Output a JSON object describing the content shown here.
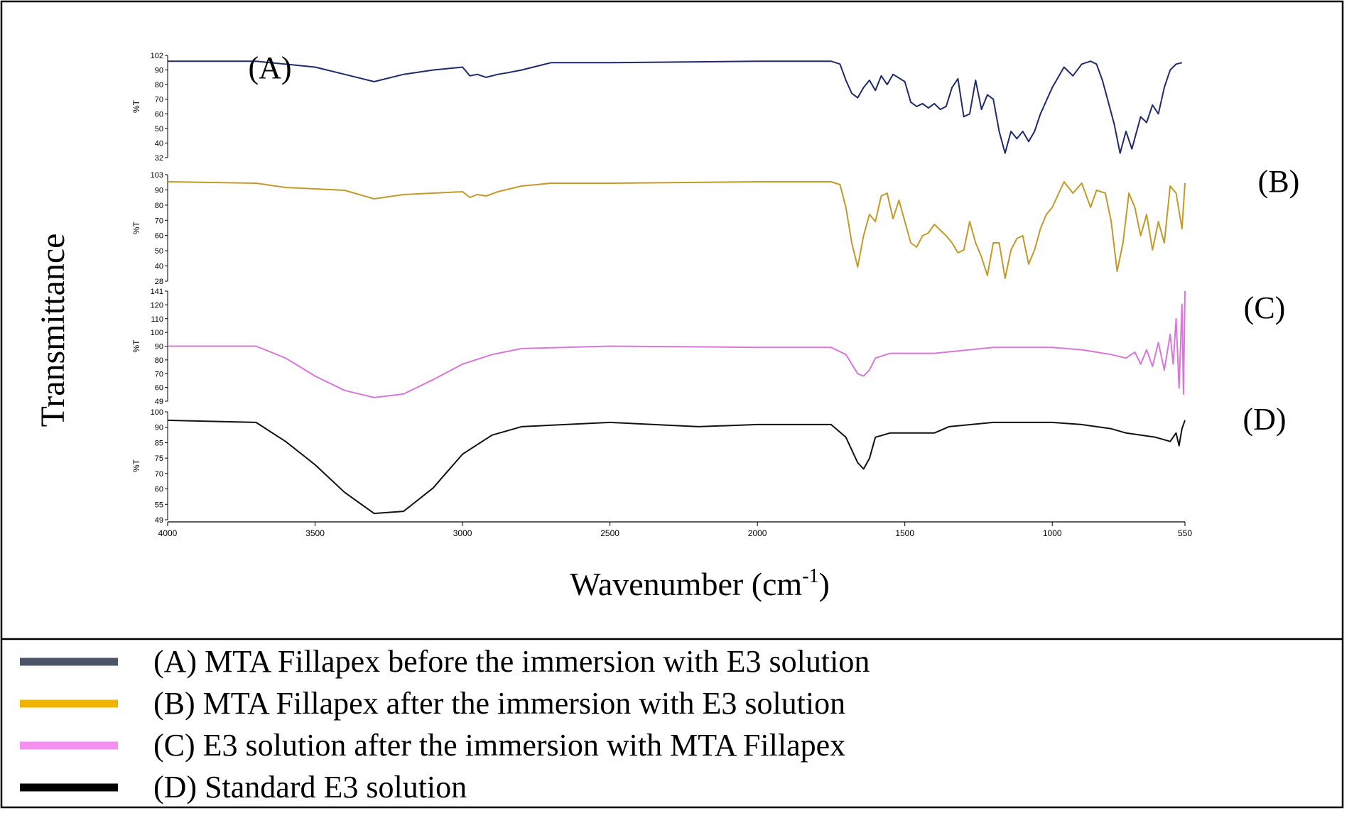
{
  "chart_data": {
    "type": "line",
    "xlabel_main": "Wavenumber (cm",
    "xlabel_sup": "-1",
    "xlabel_close": ")",
    "ylabel": "Transmittance",
    "xlim": [
      4000,
      550
    ],
    "x_axis_reversed": true,
    "x_ticks": [
      4000,
      3500,
      3000,
      2500,
      2000,
      1500,
      1000,
      550
    ],
    "x_tick_labels": [
      "4000",
      "3500",
      "3000",
      "2500",
      "2000",
      "1500",
      "1000",
      "550"
    ],
    "panel_ylabel": "%T",
    "colors": {
      "A": "#1f2a6b",
      "B": "#c29a28",
      "C": "#d877d8",
      "D": "#111111",
      "legend_A": "#4a5568",
      "legend_B": "#f0b400",
      "legend_C": "#f58ff0",
      "legend_D": "#000000"
    },
    "series": [
      {
        "id": "A",
        "name": "(A)",
        "ylim": [
          32,
          102
        ],
        "ticks": [
          "102",
          "90",
          "80",
          "70",
          "60",
          "50",
          "40",
          "32"
        ],
        "points": [
          [
            4000,
            98
          ],
          [
            3700,
            98
          ],
          [
            3500,
            94
          ],
          [
            3400,
            89
          ],
          [
            3300,
            84
          ],
          [
            3200,
            89
          ],
          [
            3100,
            92
          ],
          [
            3000,
            94
          ],
          [
            2975,
            88
          ],
          [
            2950,
            89
          ],
          [
            2920,
            87
          ],
          [
            2880,
            89
          ],
          [
            2850,
            90
          ],
          [
            2800,
            92
          ],
          [
            2700,
            97
          ],
          [
            2500,
            97
          ],
          [
            2000,
            98
          ],
          [
            1750,
            98
          ],
          [
            1720,
            96
          ],
          [
            1700,
            85
          ],
          [
            1680,
            76
          ],
          [
            1660,
            73
          ],
          [
            1640,
            80
          ],
          [
            1620,
            85
          ],
          [
            1600,
            78
          ],
          [
            1580,
            88
          ],
          [
            1560,
            82
          ],
          [
            1540,
            89
          ],
          [
            1500,
            84
          ],
          [
            1480,
            70
          ],
          [
            1460,
            67
          ],
          [
            1440,
            69
          ],
          [
            1420,
            66
          ],
          [
            1400,
            69
          ],
          [
            1380,
            65
          ],
          [
            1360,
            67
          ],
          [
            1340,
            80
          ],
          [
            1320,
            86
          ],
          [
            1300,
            60
          ],
          [
            1280,
            62
          ],
          [
            1260,
            85
          ],
          [
            1240,
            65
          ],
          [
            1220,
            75
          ],
          [
            1200,
            72
          ],
          [
            1180,
            50
          ],
          [
            1160,
            35
          ],
          [
            1140,
            50
          ],
          [
            1120,
            45
          ],
          [
            1100,
            50
          ],
          [
            1080,
            43
          ],
          [
            1060,
            50
          ],
          [
            1040,
            62
          ],
          [
            1000,
            80
          ],
          [
            960,
            94
          ],
          [
            930,
            88
          ],
          [
            900,
            96
          ],
          [
            870,
            98
          ],
          [
            850,
            96
          ],
          [
            830,
            85
          ],
          [
            810,
            70
          ],
          [
            790,
            55
          ],
          [
            770,
            35
          ],
          [
            750,
            50
          ],
          [
            730,
            38
          ],
          [
            700,
            60
          ],
          [
            680,
            56
          ],
          [
            660,
            68
          ],
          [
            640,
            62
          ],
          [
            620,
            80
          ],
          [
            600,
            92
          ],
          [
            580,
            96
          ],
          [
            560,
            97
          ]
        ]
      },
      {
        "id": "B",
        "name": "(B)",
        "ylim": [
          28,
          103
        ],
        "ticks": [
          "103",
          "90",
          "80",
          "70",
          "60",
          "50",
          "40",
          "28"
        ],
        "points": [
          [
            4000,
            98
          ],
          [
            3700,
            97
          ],
          [
            3600,
            94
          ],
          [
            3500,
            93
          ],
          [
            3400,
            92
          ],
          [
            3300,
            86
          ],
          [
            3200,
            89
          ],
          [
            3100,
            90
          ],
          [
            3000,
            91
          ],
          [
            2975,
            87
          ],
          [
            2950,
            89
          ],
          [
            2920,
            88
          ],
          [
            2880,
            91
          ],
          [
            2800,
            95
          ],
          [
            2700,
            97
          ],
          [
            2500,
            97
          ],
          [
            2000,
            98
          ],
          [
            1750,
            98
          ],
          [
            1720,
            96
          ],
          [
            1700,
            80
          ],
          [
            1680,
            55
          ],
          [
            1660,
            38
          ],
          [
            1640,
            60
          ],
          [
            1620,
            75
          ],
          [
            1600,
            70
          ],
          [
            1580,
            88
          ],
          [
            1560,
            90
          ],
          [
            1540,
            72
          ],
          [
            1520,
            85
          ],
          [
            1500,
            70
          ],
          [
            1480,
            55
          ],
          [
            1460,
            52
          ],
          [
            1440,
            60
          ],
          [
            1420,
            62
          ],
          [
            1400,
            68
          ],
          [
            1380,
            64
          ],
          [
            1360,
            60
          ],
          [
            1340,
            55
          ],
          [
            1320,
            48
          ],
          [
            1300,
            50
          ],
          [
            1280,
            70
          ],
          [
            1260,
            55
          ],
          [
            1240,
            45
          ],
          [
            1220,
            32
          ],
          [
            1200,
            55
          ],
          [
            1180,
            55
          ],
          [
            1160,
            30
          ],
          [
            1140,
            50
          ],
          [
            1120,
            58
          ],
          [
            1100,
            60
          ],
          [
            1080,
            40
          ],
          [
            1060,
            50
          ],
          [
            1040,
            65
          ],
          [
            1020,
            75
          ],
          [
            1000,
            80
          ],
          [
            960,
            98
          ],
          [
            930,
            90
          ],
          [
            900,
            97
          ],
          [
            870,
            80
          ],
          [
            850,
            92
          ],
          [
            820,
            90
          ],
          [
            800,
            70
          ],
          [
            780,
            35
          ],
          [
            760,
            55
          ],
          [
            740,
            90
          ],
          [
            720,
            80
          ],
          [
            700,
            60
          ],
          [
            680,
            75
          ],
          [
            660,
            50
          ],
          [
            640,
            70
          ],
          [
            620,
            55
          ],
          [
            600,
            95
          ],
          [
            580,
            90
          ],
          [
            560,
            65
          ],
          [
            550,
            97
          ]
        ]
      },
      {
        "id": "C",
        "name": "(C)",
        "ylim": [
          49,
          141
        ],
        "ticks": [
          "141",
          "120",
          "110",
          "100",
          "90",
          "80",
          "70",
          "60",
          "49"
        ],
        "points": [
          [
            4000,
            95
          ],
          [
            3700,
            95
          ],
          [
            3600,
            85
          ],
          [
            3500,
            70
          ],
          [
            3400,
            58
          ],
          [
            3300,
            52
          ],
          [
            3200,
            55
          ],
          [
            3100,
            67
          ],
          [
            3000,
            80
          ],
          [
            2900,
            88
          ],
          [
            2800,
            93
          ],
          [
            2500,
            95
          ],
          [
            2000,
            94
          ],
          [
            1750,
            94
          ],
          [
            1700,
            88
          ],
          [
            1660,
            72
          ],
          [
            1640,
            70
          ],
          [
            1620,
            75
          ],
          [
            1600,
            85
          ],
          [
            1550,
            89
          ],
          [
            1500,
            89
          ],
          [
            1400,
            89
          ],
          [
            1200,
            94
          ],
          [
            1000,
            94
          ],
          [
            900,
            92
          ],
          [
            800,
            88
          ],
          [
            750,
            85
          ],
          [
            720,
            90
          ],
          [
            700,
            80
          ],
          [
            680,
            92
          ],
          [
            660,
            78
          ],
          [
            640,
            98
          ],
          [
            620,
            75
          ],
          [
            600,
            105
          ],
          [
            590,
            80
          ],
          [
            580,
            118
          ],
          [
            570,
            60
          ],
          [
            560,
            130
          ],
          [
            555,
            55
          ],
          [
            550,
            141
          ]
        ]
      },
      {
        "id": "D",
        "name": "(D)",
        "ylim": [
          49,
          100
        ],
        "ticks": [
          "100",
          "90",
          "85",
          "75",
          "70",
          "60",
          "55",
          "49"
        ],
        "points": [
          [
            4000,
            96
          ],
          [
            3700,
            95
          ],
          [
            3600,
            86
          ],
          [
            3500,
            75
          ],
          [
            3400,
            62
          ],
          [
            3300,
            52
          ],
          [
            3200,
            53
          ],
          [
            3100,
            64
          ],
          [
            3000,
            80
          ],
          [
            2900,
            89
          ],
          [
            2800,
            93
          ],
          [
            2500,
            95
          ],
          [
            2200,
            93
          ],
          [
            2000,
            94
          ],
          [
            1750,
            94
          ],
          [
            1700,
            88
          ],
          [
            1660,
            76
          ],
          [
            1640,
            73
          ],
          [
            1620,
            78
          ],
          [
            1600,
            88
          ],
          [
            1550,
            90
          ],
          [
            1500,
            90
          ],
          [
            1400,
            90
          ],
          [
            1350,
            93
          ],
          [
            1200,
            95
          ],
          [
            1000,
            95
          ],
          [
            900,
            94
          ],
          [
            800,
            92
          ],
          [
            750,
            90
          ],
          [
            700,
            89
          ],
          [
            650,
            88
          ],
          [
            600,
            86
          ],
          [
            580,
            90
          ],
          [
            570,
            84
          ],
          [
            560,
            92
          ],
          [
            550,
            96
          ]
        ]
      }
    ]
  },
  "legend": {
    "items": [
      {
        "id": "A",
        "label": "(A) MTA Fillapex before the immersion with E3 solution"
      },
      {
        "id": "B",
        "label": "(B) MTA Fillapex after the immersion with E3 solution"
      },
      {
        "id": "C",
        "label": "(C) E3 solution after the immersion with MTA Fillapex"
      },
      {
        "id": "D",
        "label": "(D) Standard E3 solution"
      }
    ]
  }
}
